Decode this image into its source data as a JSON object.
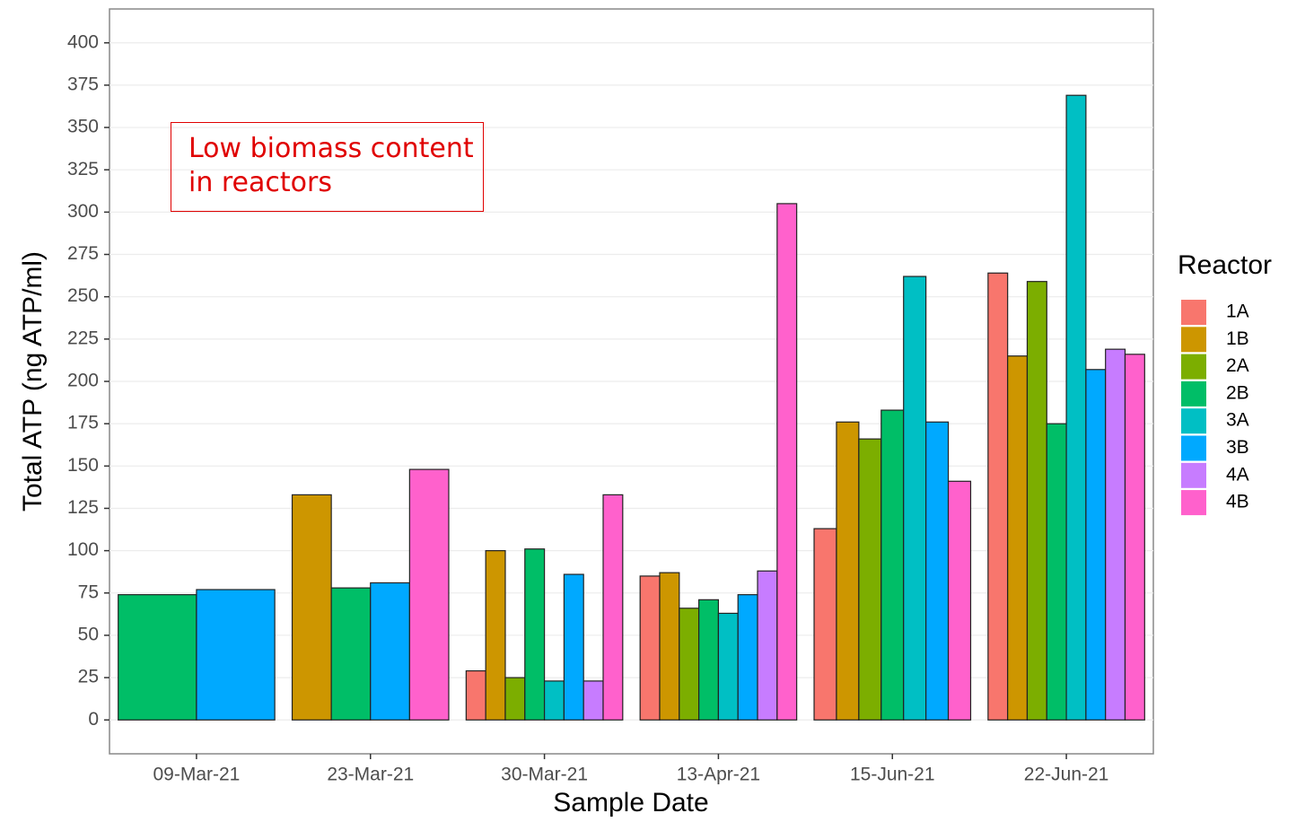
{
  "chart_data": {
    "type": "bar",
    "x_label": "Sample Date",
    "y_label": "Total ATP (ng ATP/ml)",
    "legend_title": "Reactor",
    "legend": "right",
    "grid": true,
    "annotation": "Low biomass content in reactors",
    "categories": [
      "09-Mar-21",
      "23-Mar-21",
      "30-Mar-21",
      "13-Apr-21",
      "15-Jun-21",
      "22-Jun-21"
    ],
    "series": [
      {
        "name": "1A",
        "color": "#F8766D",
        "values": [
          null,
          null,
          29,
          85,
          113,
          264
        ]
      },
      {
        "name": "1B",
        "color": "#CD9600",
        "values": [
          null,
          133,
          100,
          87,
          176,
          215
        ]
      },
      {
        "name": "2A",
        "color": "#7CAE00",
        "values": [
          null,
          null,
          25,
          66,
          166,
          259
        ]
      },
      {
        "name": "2B",
        "color": "#00BE67",
        "values": [
          74,
          78,
          101,
          71,
          183,
          175
        ]
      },
      {
        "name": "3A",
        "color": "#00BFC4",
        "values": [
          null,
          null,
          23,
          63,
          262,
          369
        ]
      },
      {
        "name": "3B",
        "color": "#00A9FF",
        "values": [
          77,
          81,
          86,
          74,
          176,
          207
        ]
      },
      {
        "name": "4A",
        "color": "#C77CFF",
        "values": [
          null,
          null,
          23,
          88,
          null,
          219
        ]
      },
      {
        "name": "4B",
        "color": "#FF61CC",
        "values": [
          null,
          148,
          133,
          305,
          141,
          216
        ]
      }
    ],
    "ylim": [
      -20,
      420
    ],
    "yticks": [
      0,
      25,
      50,
      75,
      100,
      125,
      150,
      175,
      200,
      225,
      250,
      275,
      300,
      325,
      350,
      375,
      400
    ]
  }
}
